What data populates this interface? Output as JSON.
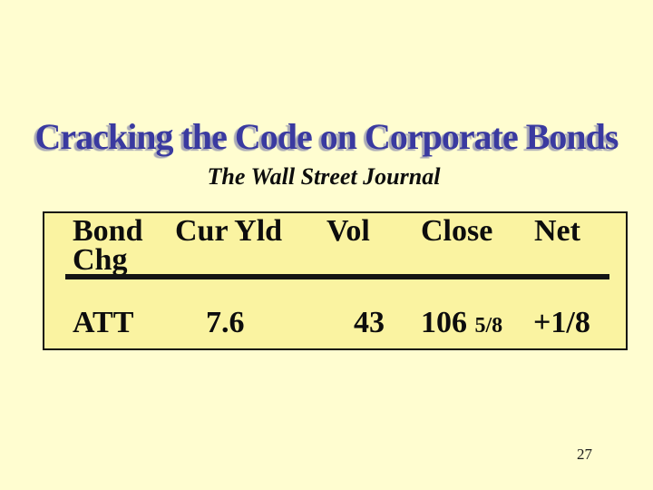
{
  "slide": {
    "title": "Cracking the Code on Corporate Bonds",
    "subtitle": "The Wall Street Journal",
    "page_number": "27"
  },
  "table": {
    "header_row1": [
      "Bond",
      "Cur Yld",
      "Vol",
      "Close",
      "Net"
    ],
    "header_row2": "Chg",
    "row": {
      "bond": "ATT",
      "cur_yld": "7.6",
      "vol": "43",
      "close_whole": "106",
      "close_fraction": "5/8",
      "net_chg": "+1/8"
    }
  },
  "colors": {
    "background": "#FFFDD0",
    "table_background": "#FAF3A1",
    "table_border": "#141414",
    "title_text": "#3A3AA0",
    "title_shadow": "#A9A9B6",
    "body_text": "#0D0D0D"
  }
}
